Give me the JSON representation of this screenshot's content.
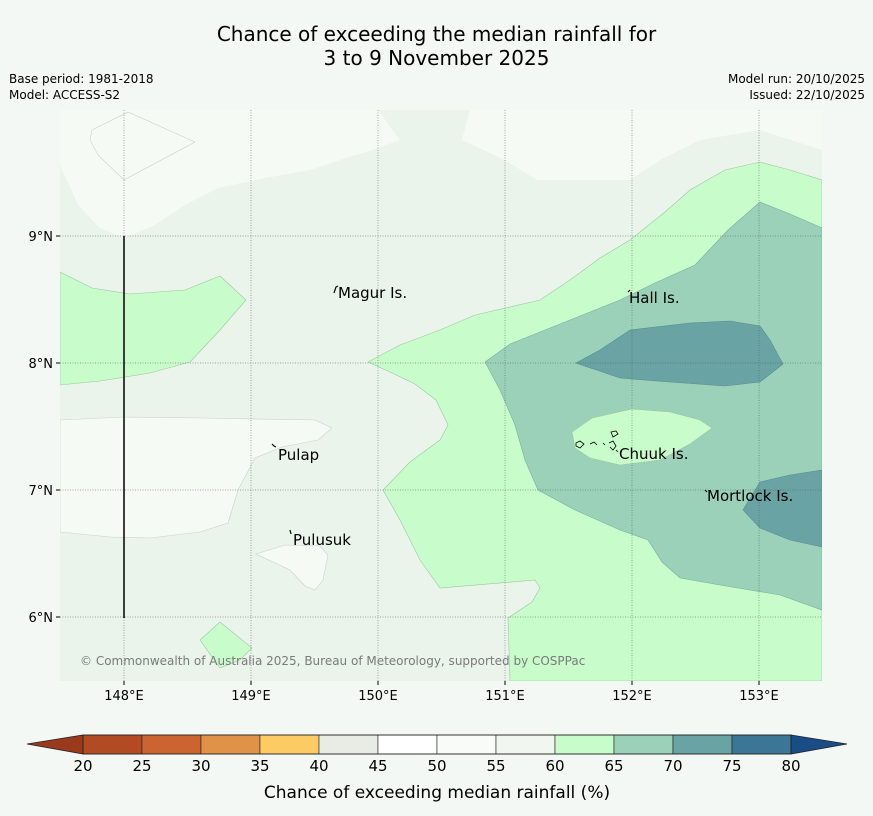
{
  "title": {
    "line1": "Chance of exceeding the median rainfall for",
    "line2": "3 to 9 November 2025"
  },
  "meta": {
    "base_period": "Base period: 1981-2018",
    "model": "Model: ACCESS-S2",
    "model_run": "Model run: 20/10/2025",
    "issued": "Issued: 22/10/2025"
  },
  "map": {
    "lon_ticks": [
      "148°E",
      "149°E",
      "150°E",
      "151°E",
      "152°E",
      "153°E"
    ],
    "lat_ticks": [
      "9°N",
      "8°N",
      "7°N",
      "6°N"
    ],
    "places": {
      "magur": "Magur Is.",
      "hall": "Hall Is.",
      "pulap": "Pulap",
      "chuuk": "Chuuk Is.",
      "pulusuk": "Pulusuk",
      "mortlock": "Mortlock Is."
    },
    "copyright": "© Commonwealth of Australia 2025, Bureau of Meteorology, supported by COSPPac"
  },
  "colorbar": {
    "label": "Chance of exceeding median rainfall (%)",
    "ticks": [
      "20",
      "25",
      "30",
      "35",
      "40",
      "45",
      "50",
      "55",
      "60",
      "65",
      "70",
      "75",
      "80"
    ],
    "colors": [
      "#b24a24",
      "#cc6432",
      "#e09348",
      "#fccb64",
      "#e9ebe5",
      "#ffffff",
      "#f8fbf8",
      "#f1f6f0",
      "#c8fccb",
      "#9ad1b8",
      "#6aa3a3",
      "#3b7697"
    ],
    "under_color": "#9a3a1c",
    "over_color": "#184d86"
  }
}
